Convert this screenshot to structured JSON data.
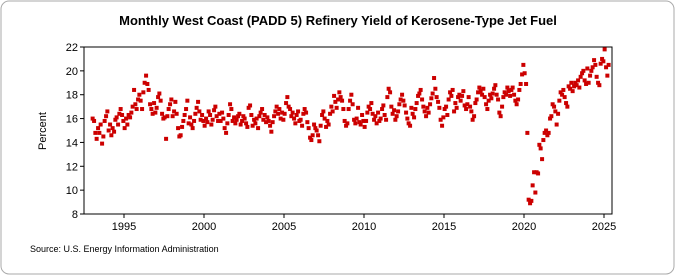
{
  "chart_data": {
    "type": "scatter",
    "title": "Monthly West Coast (PADD 5) Refinery Yield of Kerosene-Type Jet Fuel",
    "y_label": "Percent",
    "source": "Source: U.S. Energy Information Administration",
    "xlim": [
      1992.5,
      2025.5
    ],
    "xticks": [
      1995,
      2000,
      2005,
      2010,
      2015,
      2020,
      2025
    ],
    "ylim": [
      8,
      22
    ],
    "yticks": [
      8,
      10,
      12,
      14,
      16,
      18,
      20,
      22
    ],
    "grid": false,
    "series": [
      {
        "color": "#cc0000",
        "x": [
          1993.04,
          1993.13,
          1993.21,
          1993.29,
          1993.38,
          1993.46,
          1993.54,
          1993.63,
          1993.71,
          1993.79,
          1993.88,
          1993.96,
          1994.04,
          1994.13,
          1994.21,
          1994.29,
          1994.38,
          1994.46,
          1994.54,
          1994.63,
          1994.71,
          1994.79,
          1994.88,
          1994.96,
          1995.04,
          1995.13,
          1995.21,
          1995.29,
          1995.38,
          1995.46,
          1995.54,
          1995.63,
          1995.71,
          1995.79,
          1995.88,
          1995.96,
          1996.04,
          1996.13,
          1996.21,
          1996.29,
          1996.38,
          1996.46,
          1996.54,
          1996.63,
          1996.71,
          1996.79,
          1996.88,
          1996.96,
          1997.04,
          1997.13,
          1997.21,
          1997.29,
          1997.38,
          1997.46,
          1997.54,
          1997.63,
          1997.71,
          1997.79,
          1997.88,
          1997.96,
          1998.04,
          1998.13,
          1998.21,
          1998.29,
          1998.38,
          1998.46,
          1998.54,
          1998.63,
          1998.71,
          1998.79,
          1998.88,
          1998.96,
          1999.04,
          1999.13,
          1999.21,
          1999.29,
          1999.38,
          1999.46,
          1999.54,
          1999.63,
          1999.71,
          1999.79,
          1999.88,
          1999.96,
          2000.04,
          2000.13,
          2000.21,
          2000.29,
          2000.38,
          2000.46,
          2000.54,
          2000.63,
          2000.71,
          2000.79,
          2000.88,
          2000.96,
          2001.04,
          2001.13,
          2001.21,
          2001.29,
          2001.38,
          2001.46,
          2001.54,
          2001.63,
          2001.71,
          2001.79,
          2001.88,
          2001.96,
          2002.04,
          2002.13,
          2002.21,
          2002.29,
          2002.38,
          2002.46,
          2002.54,
          2002.63,
          2002.71,
          2002.79,
          2002.88,
          2002.96,
          2003.04,
          2003.13,
          2003.21,
          2003.29,
          2003.38,
          2003.46,
          2003.54,
          2003.63,
          2003.71,
          2003.79,
          2003.88,
          2003.96,
          2004.04,
          2004.13,
          2004.21,
          2004.29,
          2004.38,
          2004.46,
          2004.54,
          2004.63,
          2004.71,
          2004.79,
          2004.88,
          2004.96,
          2005.04,
          2005.13,
          2005.21,
          2005.29,
          2005.38,
          2005.46,
          2005.54,
          2005.63,
          2005.71,
          2005.79,
          2005.88,
          2005.96,
          2006.04,
          2006.13,
          2006.21,
          2006.29,
          2006.38,
          2006.46,
          2006.54,
          2006.63,
          2006.71,
          2006.79,
          2006.88,
          2006.96,
          2007.04,
          2007.13,
          2007.21,
          2007.29,
          2007.38,
          2007.46,
          2007.54,
          2007.63,
          2007.71,
          2007.79,
          2007.88,
          2007.96,
          2008.04,
          2008.13,
          2008.21,
          2008.29,
          2008.38,
          2008.46,
          2008.54,
          2008.63,
          2008.71,
          2008.79,
          2008.88,
          2008.96,
          2009.04,
          2009.13,
          2009.21,
          2009.29,
          2009.38,
          2009.46,
          2009.54,
          2009.63,
          2009.71,
          2009.79,
          2009.88,
          2009.96,
          2010.04,
          2010.13,
          2010.21,
          2010.29,
          2010.38,
          2010.46,
          2010.54,
          2010.63,
          2010.71,
          2010.79,
          2010.88,
          2010.96,
          2011.04,
          2011.13,
          2011.21,
          2011.29,
          2011.38,
          2011.46,
          2011.54,
          2011.63,
          2011.71,
          2011.79,
          2011.88,
          2011.96,
          2012.04,
          2012.13,
          2012.21,
          2012.29,
          2012.38,
          2012.46,
          2012.54,
          2012.63,
          2012.71,
          2012.79,
          2012.88,
          2012.96,
          2013.04,
          2013.13,
          2013.21,
          2013.29,
          2013.38,
          2013.46,
          2013.54,
          2013.63,
          2013.71,
          2013.79,
          2013.88,
          2013.96,
          2014.04,
          2014.13,
          2014.21,
          2014.29,
          2014.38,
          2014.46,
          2014.54,
          2014.63,
          2014.71,
          2014.79,
          2014.88,
          2014.96,
          2015.04,
          2015.13,
          2015.21,
          2015.29,
          2015.38,
          2015.46,
          2015.54,
          2015.63,
          2015.71,
          2015.79,
          2015.88,
          2015.96,
          2016.04,
          2016.13,
          2016.21,
          2016.29,
          2016.38,
          2016.46,
          2016.54,
          2016.63,
          2016.71,
          2016.79,
          2016.88,
          2016.96,
          2017.04,
          2017.13,
          2017.21,
          2017.29,
          2017.38,
          2017.46,
          2017.54,
          2017.63,
          2017.71,
          2017.79,
          2017.88,
          2017.96,
          2018.04,
          2018.13,
          2018.21,
          2018.29,
          2018.38,
          2018.46,
          2018.54,
          2018.63,
          2018.71,
          2018.79,
          2018.88,
          2018.96,
          2019.04,
          2019.13,
          2019.21,
          2019.29,
          2019.38,
          2019.46,
          2019.54,
          2019.63,
          2019.71,
          2019.79,
          2019.88,
          2019.96,
          2020.04,
          2020.13,
          2020.21,
          2020.29,
          2020.38,
          2020.46,
          2020.54,
          2020.63,
          2020.71,
          2020.79,
          2020.88,
          2020.96,
          2021.04,
          2021.13,
          2021.21,
          2021.29,
          2021.38,
          2021.46,
          2021.54,
          2021.63,
          2021.71,
          2021.79,
          2021.88,
          2021.96,
          2022.04,
          2022.13,
          2022.21,
          2022.29,
          2022.38,
          2022.46,
          2022.54,
          2022.63,
          2022.71,
          2022.79,
          2022.88,
          2022.96,
          2023.04,
          2023.13,
          2023.21,
          2023.29,
          2023.38,
          2023.46,
          2023.54,
          2023.63,
          2023.71,
          2023.79,
          2023.88,
          2023.96,
          2024.04,
          2024.13,
          2024.21,
          2024.29,
          2024.38,
          2024.46,
          2024.54,
          2024.63,
          2024.71,
          2024.79,
          2024.88,
          2024.96,
          2025.04,
          2025.13,
          2025.21,
          2025.29
        ],
        "values": [
          16.0,
          15.8,
          14.8,
          14.3,
          15.2,
          14.8,
          15.5,
          13.9,
          14.5,
          15.8,
          16.2,
          16.6,
          15.0,
          15.5,
          14.6,
          15.2,
          14.9,
          15.9,
          16.1,
          15.5,
          16.4,
          16.8,
          16.3,
          15.8,
          15.2,
          16.0,
          15.5,
          16.3,
          16.1,
          16.5,
          17.0,
          18.4,
          17.2,
          16.8,
          17.6,
          18.0,
          17.5,
          16.8,
          18.2,
          19.0,
          19.6,
          18.9,
          18.4,
          17.2,
          16.8,
          16.4,
          17.3,
          16.5,
          16.9,
          17.8,
          18.1,
          17.5,
          16.4,
          16.0,
          16.1,
          14.3,
          16.2,
          16.8,
          17.2,
          17.6,
          16.2,
          16.6,
          17.4,
          16.4,
          15.2,
          14.5,
          14.6,
          15.3,
          15.8,
          16.3,
          16.8,
          17.5,
          15.6,
          16.1,
          15.5,
          15.2,
          15.8,
          16.4,
          16.9,
          17.4,
          16.6,
          15.9,
          16.3,
          15.8,
          15.4,
          16.0,
          15.7,
          16.6,
          16.3,
          15.5,
          15.9,
          16.7,
          17.0,
          16.2,
          15.8,
          16.4,
          15.8,
          16.5,
          16.0,
          15.2,
          14.8,
          15.6,
          16.3,
          17.2,
          16.8,
          15.8,
          16.1,
          15.6,
          15.9,
          16.2,
          16.4,
          15.5,
          15.8,
          16.2,
          16.0,
          15.6,
          15.3,
          16.9,
          17.1,
          16.3,
          15.4,
          15.9,
          15.6,
          16.0,
          15.2,
          16.2,
          16.5,
          16.8,
          15.9,
          16.3,
          15.7,
          16.1,
          15.8,
          15.4,
          14.9,
          15.7,
          16.2,
          16.6,
          17.0,
          16.4,
          16.8,
          16.0,
          16.5,
          15.9,
          16.4,
          17.3,
          17.8,
          17.0,
          16.8,
          16.2,
          16.5,
          16.0,
          15.6,
          16.3,
          16.6,
          15.8,
          15.9,
          15.4,
          16.4,
          16.8,
          16.5,
          15.7,
          15.2,
          14.4,
          14.2,
          14.6,
          15.5,
          15.2,
          15.0,
          14.6,
          14.1,
          15.4,
          16.3,
          16.6,
          16.0,
          15.3,
          15.8,
          15.5,
          16.4,
          17.0,
          16.6,
          17.9,
          17.4,
          16.9,
          17.6,
          18.2,
          17.8,
          17.5,
          16.8,
          15.8,
          15.4,
          15.6,
          16.8,
          17.5,
          18.0,
          17.2,
          15.9,
          15.6,
          16.0,
          16.9,
          15.7,
          15.5,
          16.3,
          15.8,
          15.3,
          15.8,
          16.5,
          17.0,
          16.8,
          17.3,
          16.4,
          15.9,
          16.2,
          15.6,
          16.5,
          15.8,
          16.0,
          16.8,
          17.1,
          16.3,
          15.9,
          17.8,
          18.5,
          18.2,
          17.0,
          16.4,
          16.7,
          15.9,
          16.2,
          16.6,
          17.2,
          17.6,
          18.0,
          17.5,
          17.1,
          16.5,
          16.0,
          15.6,
          15.4,
          16.9,
          16.4,
          16.1,
          16.8,
          17.3,
          17.9,
          18.1,
          18.4,
          17.6,
          17.0,
          16.6,
          16.2,
          16.9,
          16.5,
          17.2,
          17.7,
          18.1,
          19.4,
          18.5,
          17.8,
          17.4,
          16.9,
          15.9,
          15.4,
          16.1,
          16.8,
          17.0,
          16.3,
          17.6,
          18.2,
          17.9,
          18.4,
          16.6,
          17.3,
          16.9,
          17.8,
          18.0,
          17.5,
          17.9,
          18.3,
          17.1,
          16.8,
          17.2,
          17.8,
          17.0,
          16.6,
          15.9,
          16.2,
          17.3,
          17.6,
          18.2,
          18.6,
          18.3,
          18.0,
          18.5,
          17.8,
          17.2,
          16.8,
          17.5,
          18.0,
          17.7,
          18.1,
          18.5,
          18.8,
          18.0,
          17.6,
          16.5,
          16.2,
          17.0,
          17.8,
          18.2,
          18.0,
          18.6,
          18.3,
          17.9,
          18.4,
          18.6,
          18.0,
          17.5,
          17.2,
          17.6,
          18.4,
          18.9,
          19.7,
          20.5,
          19.8,
          18.9,
          14.8,
          9.2,
          8.9,
          9.1,
          10.4,
          11.5,
          9.8,
          11.5,
          11.4,
          13.8,
          13.5,
          12.6,
          14.2,
          14.8,
          15.0,
          14.6,
          14.8,
          16.0,
          16.2,
          17.2,
          17.0,
          16.6,
          15.5,
          16.4,
          17.5,
          18.2,
          18.0,
          18.4,
          17.8,
          17.3,
          17.0,
          18.7,
          18.5,
          19.0,
          18.3,
          18.7,
          19.0,
          18.8,
          19.2,
          18.6,
          19.5,
          19.8,
          20.0,
          19.2,
          18.9,
          20.2,
          19.0,
          19.6,
          20.0,
          20.3,
          20.9,
          20.5,
          19.5,
          19.0,
          18.8,
          20.6,
          21.0,
          20.8,
          21.8,
          20.3,
          19.6,
          20.5
        ]
      }
    ]
  }
}
